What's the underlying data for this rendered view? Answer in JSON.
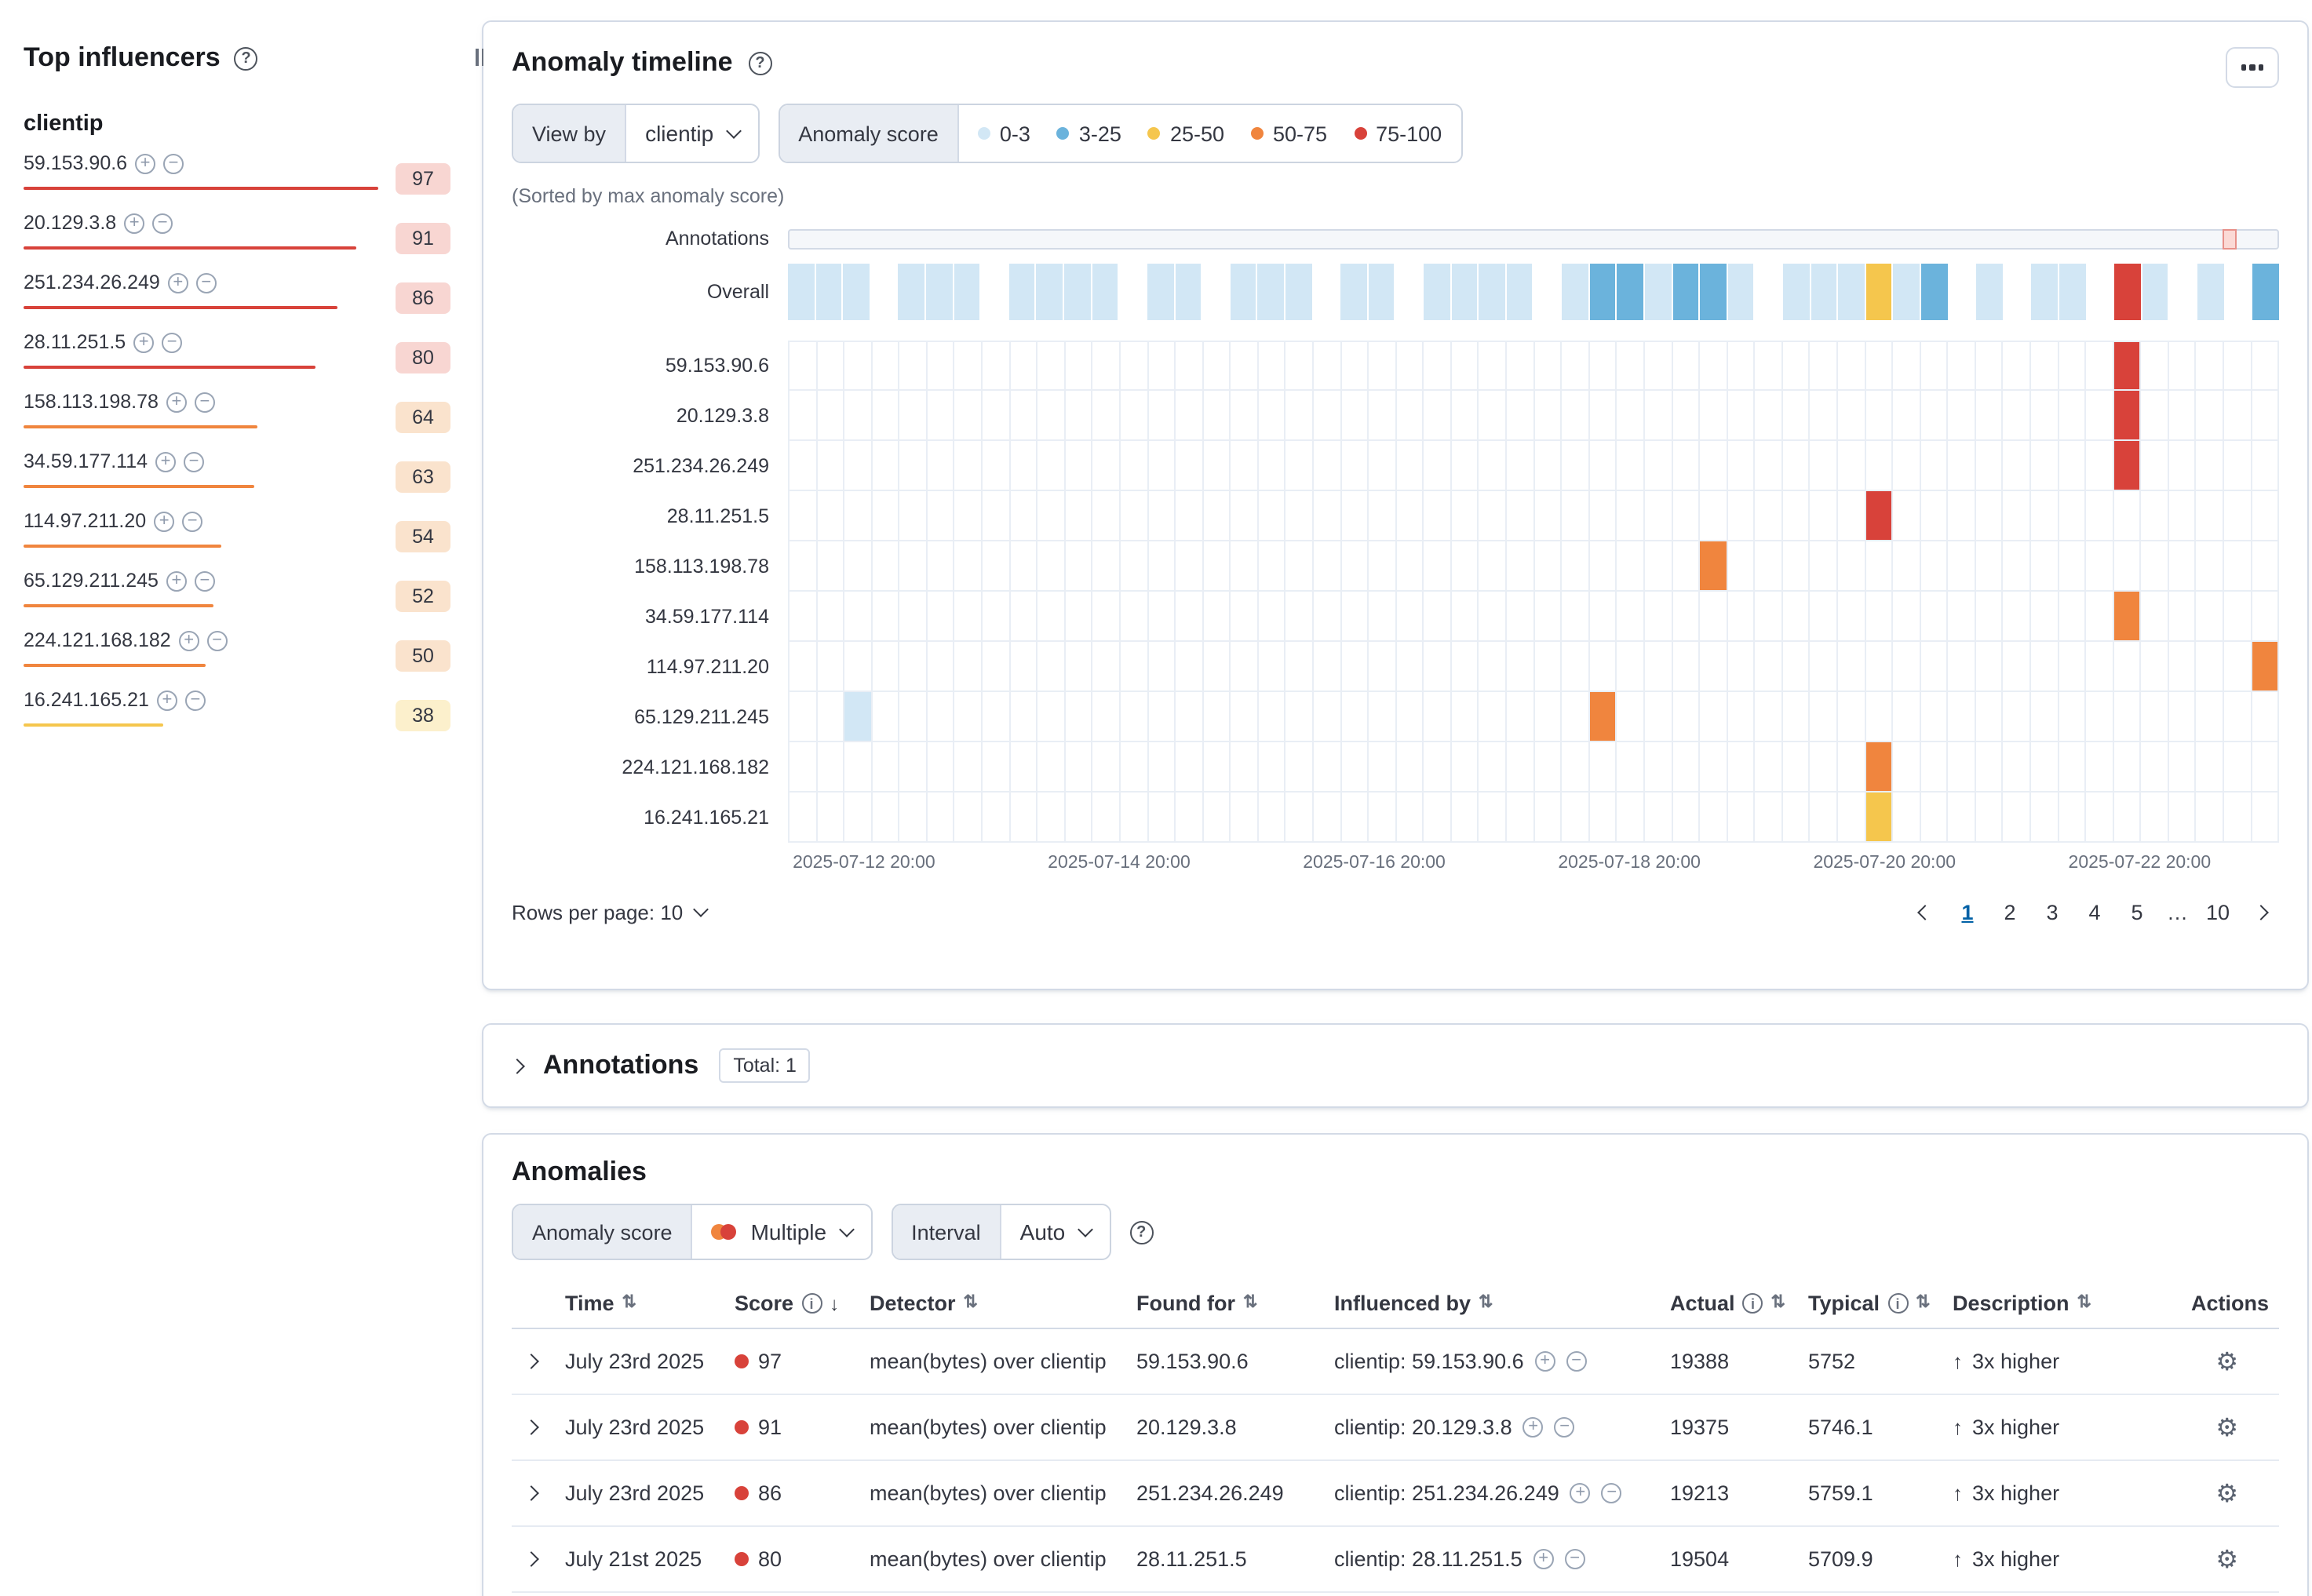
{
  "colors": {
    "severity_unknown": "#d2e7f5",
    "severity_warning": "#6bb3dc",
    "severity_minor": "#f5c64d",
    "severity_major": "#f0853e",
    "severity_critical": "#d8423a",
    "accent_link": "#0061a6"
  },
  "top_influencers": {
    "title": "Top influencers",
    "group_label": "clientip",
    "items": [
      {
        "label": "59.153.90.6",
        "score": 97,
        "severity": "critical"
      },
      {
        "label": "20.129.3.8",
        "score": 91,
        "severity": "critical"
      },
      {
        "label": "251.234.26.249",
        "score": 86,
        "severity": "critical"
      },
      {
        "label": "28.11.251.5",
        "score": 80,
        "severity": "critical"
      },
      {
        "label": "158.113.198.78",
        "score": 64,
        "severity": "major"
      },
      {
        "label": "34.59.177.114",
        "score": 63,
        "severity": "major"
      },
      {
        "label": "114.97.211.20",
        "score": 54,
        "severity": "major"
      },
      {
        "label": "65.129.211.245",
        "score": 52,
        "severity": "major"
      },
      {
        "label": "224.121.168.182",
        "score": 50,
        "severity": "major"
      },
      {
        "label": "16.241.165.21",
        "score": 38,
        "severity": "minor"
      }
    ]
  },
  "timeline": {
    "title": "Anomaly timeline",
    "view_by_label": "View by",
    "view_by_value": "clientip",
    "legend_title": "Anomaly score",
    "legend": [
      {
        "label": "0-3",
        "color": "#d2e7f5"
      },
      {
        "label": "3-25",
        "color": "#6bb3dc"
      },
      {
        "label": "25-50",
        "color": "#f5c64d"
      },
      {
        "label": "50-75",
        "color": "#f0853e"
      },
      {
        "label": "75-100",
        "color": "#d8423a"
      }
    ],
    "sort_note": "(Sorted by max anomaly score)",
    "annotations_label": "Annotations",
    "overall_label": "Overall",
    "columns": 54,
    "annotation_marker_index": 52,
    "overall_cells": [
      1,
      1,
      1,
      0,
      1,
      1,
      1,
      0,
      1,
      1,
      1,
      1,
      0,
      1,
      1,
      0,
      1,
      1,
      1,
      0,
      1,
      1,
      0,
      1,
      1,
      1,
      1,
      0,
      1,
      2,
      2,
      1,
      2,
      2,
      1,
      0,
      1,
      1,
      1,
      3,
      1,
      2,
      0,
      1,
      0,
      1,
      1,
      0,
      5,
      1,
      0,
      1,
      0,
      2
    ],
    "lanes": [
      {
        "label": "59.153.90.6",
        "cells": [
          {
            "i": 48,
            "sev": "critical"
          }
        ]
      },
      {
        "label": "20.129.3.8",
        "cells": [
          {
            "i": 48,
            "sev": "critical"
          }
        ]
      },
      {
        "label": "251.234.26.249",
        "cells": [
          {
            "i": 48,
            "sev": "critical"
          }
        ]
      },
      {
        "label": "28.11.251.5",
        "cells": [
          {
            "i": 39,
            "sev": "critical"
          }
        ]
      },
      {
        "label": "158.113.198.78",
        "cells": [
          {
            "i": 33,
            "sev": "major"
          }
        ]
      },
      {
        "label": "34.59.177.114",
        "cells": [
          {
            "i": 48,
            "sev": "major"
          }
        ]
      },
      {
        "label": "114.97.211.20",
        "cells": [
          {
            "i": 53,
            "sev": "major"
          }
        ]
      },
      {
        "label": "65.129.211.245",
        "cells": [
          {
            "i": 2,
            "sev": "low"
          },
          {
            "i": 29,
            "sev": "major"
          }
        ]
      },
      {
        "label": "224.121.168.182",
        "cells": [
          {
            "i": 39,
            "sev": "major"
          }
        ]
      },
      {
        "label": "16.241.165.21",
        "cells": [
          {
            "i": 39,
            "sev": "minor"
          }
        ]
      }
    ],
    "x_ticks": [
      "2025-07-12 20:00",
      "2025-07-14 20:00",
      "2025-07-16 20:00",
      "2025-07-18 20:00",
      "2025-07-20 20:00",
      "2025-07-22 20:00"
    ],
    "rows_per_page_label": "Rows per page: 10",
    "pagination": {
      "pages": [
        "1",
        "2",
        "3",
        "4",
        "5",
        "…",
        "10"
      ],
      "active": "1"
    }
  },
  "annotations_panel": {
    "title": "Annotations",
    "total_badge": "Total: 1"
  },
  "anomalies": {
    "title": "Anomalies",
    "score_filter_label": "Anomaly score",
    "score_filter_value": "Multiple",
    "interval_label": "Interval",
    "interval_value": "Auto",
    "table": {
      "columns": [
        "Time",
        "Score",
        "Detector",
        "Found for",
        "Influenced by",
        "Actual",
        "Typical",
        "Description",
        "Actions"
      ],
      "rows": [
        {
          "time": "July 23rd 2025",
          "score": "97",
          "detector": "mean(bytes) over clientip",
          "found_for": "59.153.90.6",
          "influenced_by": "clientip: 59.153.90.6",
          "actual": "19388",
          "typical": "5752",
          "description": "3x higher"
        },
        {
          "time": "July 23rd 2025",
          "score": "91",
          "detector": "mean(bytes) over clientip",
          "found_for": "20.129.3.8",
          "influenced_by": "clientip: 20.129.3.8",
          "actual": "19375",
          "typical": "5746.1",
          "description": "3x higher"
        },
        {
          "time": "July 23rd 2025",
          "score": "86",
          "detector": "mean(bytes) over clientip",
          "found_for": "251.234.26.249",
          "influenced_by": "clientip: 251.234.26.249",
          "actual": "19213",
          "typical": "5759.1",
          "description": "3x higher"
        },
        {
          "time": "July 21st 2025",
          "score": "80",
          "detector": "mean(bytes) over clientip",
          "found_for": "28.11.251.5",
          "influenced_by": "clientip: 28.11.251.5",
          "actual": "19504",
          "typical": "5709.9",
          "description": "3x higher"
        }
      ]
    }
  }
}
